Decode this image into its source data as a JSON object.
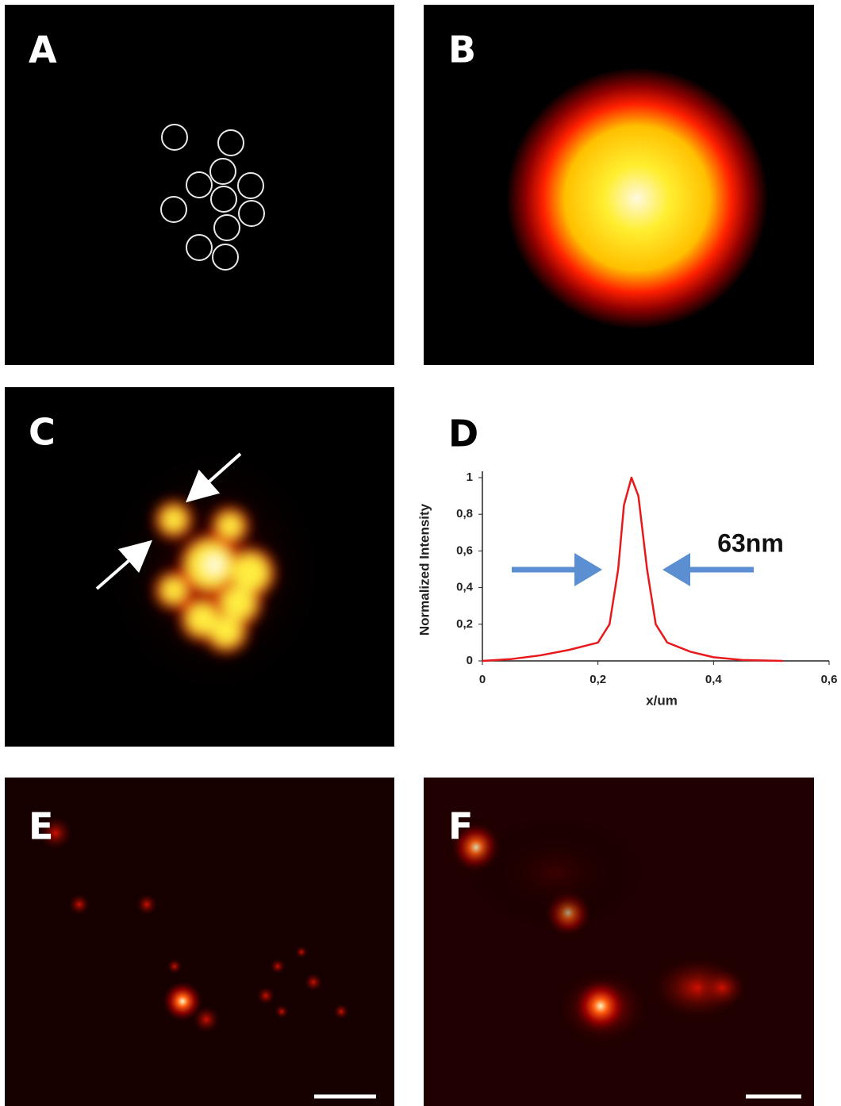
{
  "panels": [
    "A",
    "B",
    "C",
    "D",
    "E",
    "F"
  ],
  "chart_data": {
    "type": "line",
    "color": "#e8191c",
    "ylabel": "Normalized Intensity",
    "xlabel": "x/um",
    "annotation": "63nm",
    "x": [
      0,
      0.05,
      0.1,
      0.15,
      0.2,
      0.22,
      0.235,
      0.245,
      0.258,
      0.27,
      0.285,
      0.3,
      0.32,
      0.36,
      0.4,
      0.45,
      0.52
    ],
    "values": [
      0,
      0.01,
      0.03,
      0.06,
      0.1,
      0.2,
      0.5,
      0.85,
      1,
      0.9,
      0.5,
      0.2,
      0.1,
      0.05,
      0.02,
      0.005,
      0
    ],
    "xlim": [
      0,
      0.6
    ],
    "xticks": [
      0,
      {
        "value": 0.2,
        "label": "0,2"
      },
      {
        "value": 0.4,
        "label": "0,4"
      },
      {
        "value": 0.6,
        "label": "0,6"
      }
    ],
    "ylim": [
      0,
      1
    ],
    "yticks": [
      0,
      {
        "value": 0.2,
        "label": "0,2"
      },
      {
        "value": 0.4,
        "label": "0,4"
      },
      {
        "value": 0.6,
        "label": "0,6"
      },
      {
        "value": 0.8,
        "label": "0,8"
      },
      1
    ]
  }
}
